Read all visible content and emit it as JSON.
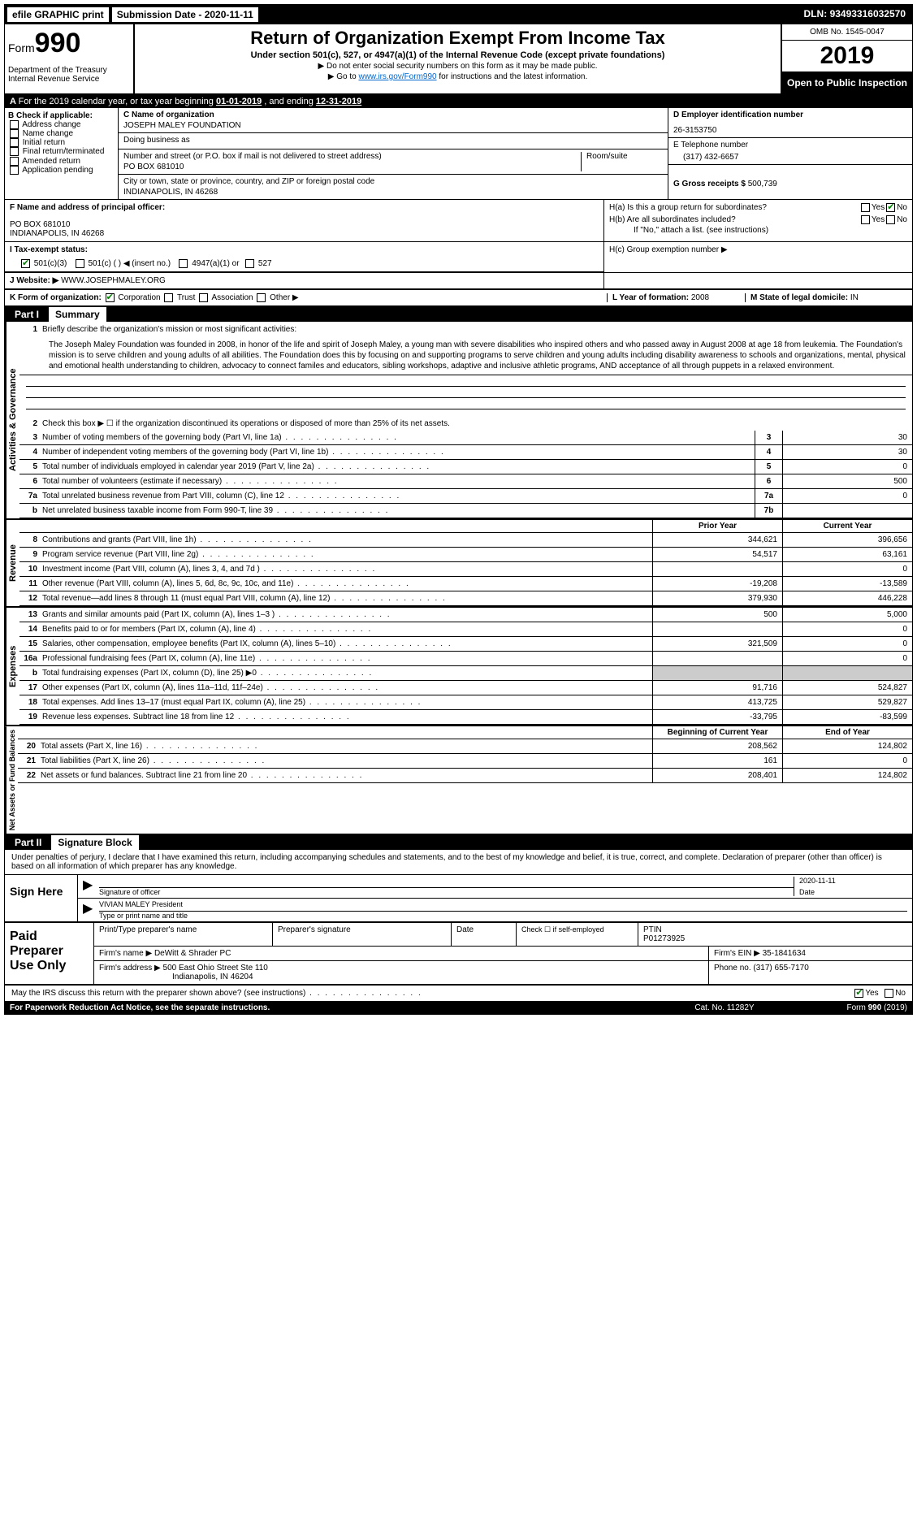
{
  "topbar": {
    "efile": "efile GRAPHIC print",
    "submission": "Submission Date - 2020-11-11",
    "dln_label": "DLN:",
    "dln": "93493316032570"
  },
  "header": {
    "form_word": "Form",
    "form_num": "990",
    "dept": "Department of the Treasury\nInternal Revenue Service",
    "title": "Return of Organization Exempt From Income Tax",
    "subtitle": "Under section 501(c), 527, or 4947(a)(1) of the Internal Revenue Code (except private foundations)",
    "note1": "▶ Do not enter social security numbers on this form as it may be made public.",
    "note2_pre": "▶ Go to ",
    "note2_link": "www.irs.gov/Form990",
    "note2_post": " for instructions and the latest information.",
    "omb": "OMB No. 1545-0047",
    "year": "2019",
    "open": "Open to Public Inspection"
  },
  "section_a": {
    "pre": "For the 2019 calendar year, or tax year beginning ",
    "begin": "01-01-2019",
    "mid": " , and ending ",
    "end": "12-31-2019"
  },
  "box_b": {
    "label": "B Check if applicable:",
    "opts": [
      "Address change",
      "Name change",
      "Initial return",
      "Final return/terminated",
      "Amended return",
      "Application pending"
    ]
  },
  "box_c": {
    "name_label": "C Name of organization",
    "name": "JOSEPH MALEY FOUNDATION",
    "dba_label": "Doing business as",
    "dba": "",
    "street_label": "Number and street (or P.O. box if mail is not delivered to street address)",
    "street": "PO BOX 681010",
    "room_label": "Room/suite",
    "room": "",
    "city_label": "City or town, state or province, country, and ZIP or foreign postal code",
    "city": "INDIANAPOLIS, IN  46268"
  },
  "box_d": {
    "label": "D Employer identification number",
    "val": "26-3153750"
  },
  "box_e": {
    "label": "E Telephone number",
    "val": "(317) 432-6657"
  },
  "box_g": {
    "label": "G Gross receipts $",
    "val": "500,739"
  },
  "box_f": {
    "label": "F Name and address of principal officer:",
    "line1": "PO BOX 681010",
    "line2": "INDIANAPOLIS, IN  46268"
  },
  "box_h": {
    "ha": "H(a)  Is this a group return for subordinates?",
    "ha_no_checked": true,
    "hb": "H(b)  Are all subordinates included?",
    "hb_note": "If \"No,\" attach a list. (see instructions)",
    "hc": "H(c)  Group exemption number ▶"
  },
  "box_i": {
    "label": "I  Tax-exempt status:",
    "opt1": "501(c)(3)",
    "opt2": "501(c) (  ) ◀ (insert no.)",
    "opt3": "4947(a)(1) or",
    "opt4": "527"
  },
  "box_j": {
    "label": "J  Website: ▶",
    "val": "WWW.JOSEPHMALEY.ORG"
  },
  "box_k": {
    "label": "K Form of organization:",
    "opts": [
      "Corporation",
      "Trust",
      "Association",
      "Other ▶"
    ]
  },
  "box_l": {
    "label": "L Year of formation:",
    "val": "2008"
  },
  "box_m": {
    "label": "M State of legal domicile:",
    "val": "IN"
  },
  "part1": {
    "num": "Part I",
    "title": "Summary"
  },
  "labels": {
    "activities": "Activities & Governance",
    "revenue": "Revenue",
    "expenses": "Expenses",
    "netassets": "Net Assets or Fund Balances"
  },
  "line1": {
    "label": "Briefly describe the organization's mission or most significant activities:",
    "mission": "The Joseph Maley Foundation was founded in 2008, in honor of the life and spirit of Joseph Maley, a young man with severe disabilities who inspired others and who passed away in August 2008 at age 18 from leukemia. The Foundation's mission is to serve children and young adults of all abilities. The Foundation does this by focusing on and supporting programs to serve children and young adults including disability awareness to schools and organizations, mental, physical and emotional health understanding to children, advocacy to connect familes and educators, sibling workshops, adaptive and inclusive athletic programs, AND acceptance of all through puppets in a relaxed environment."
  },
  "line2": "Check this box ▶ ☐ if the organization discontinued its operations or disposed of more than 25% of its net assets.",
  "lines_agov": [
    {
      "n": "3",
      "t": "Number of voting members of the governing body (Part VI, line 1a)",
      "bn": "3",
      "v": "30"
    },
    {
      "n": "4",
      "t": "Number of independent voting members of the governing body (Part VI, line 1b)",
      "bn": "4",
      "v": "30"
    },
    {
      "n": "5",
      "t": "Total number of individuals employed in calendar year 2019 (Part V, line 2a)",
      "bn": "5",
      "v": "0"
    },
    {
      "n": "6",
      "t": "Total number of volunteers (estimate if necessary)",
      "bn": "6",
      "v": "500"
    },
    {
      "n": "7a",
      "t": "Total unrelated business revenue from Part VIII, column (C), line 12",
      "bn": "7a",
      "v": "0"
    },
    {
      "n": "b",
      "t": "Net unrelated business taxable income from Form 990-T, line 39",
      "bn": "7b",
      "v": ""
    }
  ],
  "col_headers": {
    "prior": "Prior Year",
    "current": "Current Year",
    "begin": "Beginning of Current Year",
    "end": "End of Year"
  },
  "lines_rev": [
    {
      "n": "8",
      "t": "Contributions and grants (Part VIII, line 1h)",
      "p": "344,621",
      "c": "396,656"
    },
    {
      "n": "9",
      "t": "Program service revenue (Part VIII, line 2g)",
      "p": "54,517",
      "c": "63,161"
    },
    {
      "n": "10",
      "t": "Investment income (Part VIII, column (A), lines 3, 4, and 7d )",
      "p": "",
      "c": "0"
    },
    {
      "n": "11",
      "t": "Other revenue (Part VIII, column (A), lines 5, 6d, 8c, 9c, 10c, and 11e)",
      "p": "-19,208",
      "c": "-13,589"
    },
    {
      "n": "12",
      "t": "Total revenue—add lines 8 through 11 (must equal Part VIII, column (A), line 12)",
      "p": "379,930",
      "c": "446,228"
    }
  ],
  "lines_exp": [
    {
      "n": "13",
      "t": "Grants and similar amounts paid (Part IX, column (A), lines 1–3 )",
      "p": "500",
      "c": "5,000"
    },
    {
      "n": "14",
      "t": "Benefits paid to or for members (Part IX, column (A), line 4)",
      "p": "",
      "c": "0"
    },
    {
      "n": "15",
      "t": "Salaries, other compensation, employee benefits (Part IX, column (A), lines 5–10)",
      "p": "321,509",
      "c": "0"
    },
    {
      "n": "16a",
      "t": "Professional fundraising fees (Part IX, column (A), line 11e)",
      "p": "",
      "c": "0"
    },
    {
      "n": "b",
      "t": "Total fundraising expenses (Part IX, column (D), line 25) ▶0",
      "p": "gray",
      "c": "gray"
    },
    {
      "n": "17",
      "t": "Other expenses (Part IX, column (A), lines 11a–11d, 11f–24e)",
      "p": "91,716",
      "c": "524,827"
    },
    {
      "n": "18",
      "t": "Total expenses. Add lines 13–17 (must equal Part IX, column (A), line 25)",
      "p": "413,725",
      "c": "529,827"
    },
    {
      "n": "19",
      "t": "Revenue less expenses. Subtract line 18 from line 12",
      "p": "-33,795",
      "c": "-83,599"
    }
  ],
  "lines_net": [
    {
      "n": "20",
      "t": "Total assets (Part X, line 16)",
      "p": "208,562",
      "c": "124,802"
    },
    {
      "n": "21",
      "t": "Total liabilities (Part X, line 26)",
      "p": "161",
      "c": "0"
    },
    {
      "n": "22",
      "t": "Net assets or fund balances. Subtract line 21 from line 20",
      "p": "208,401",
      "c": "124,802"
    }
  ],
  "part2": {
    "num": "Part II",
    "title": "Signature Block"
  },
  "sig": {
    "penalty": "Under penalties of perjury, I declare that I have examined this return, including accompanying schedules and statements, and to the best of my knowledge and belief, it is true, correct, and complete. Declaration of preparer (other than officer) is based on all information of which preparer has any knowledge.",
    "sign_here": "Sign Here",
    "sig_officer": "Signature of officer",
    "date_label": "Date",
    "date_val": "2020-11-11",
    "name_title": "VIVIAN MALEY President",
    "type_label": "Type or print name and title"
  },
  "prep": {
    "label": "Paid Preparer Use Only",
    "h1": "Print/Type preparer's name",
    "h2": "Preparer's signature",
    "h3": "Date",
    "h4_pre": "Check ☐ if self-employed",
    "h5": "PTIN",
    "ptin": "P01273925",
    "firm_name_label": "Firm's name    ▶",
    "firm_name": "DeWitt & Shrader PC",
    "firm_ein_label": "Firm's EIN ▶",
    "firm_ein": "35-1841634",
    "firm_addr_label": "Firm's address ▶",
    "firm_addr1": "500 East Ohio Street Ste 110",
    "firm_addr2": "Indianapolis, IN  46204",
    "phone_label": "Phone no.",
    "phone": "(317) 655-7170"
  },
  "discuss": {
    "text": "May the IRS discuss this return with the preparer shown above? (see instructions)",
    "yes": "Yes",
    "no": "No"
  },
  "footer": {
    "left": "For Paperwork Reduction Act Notice, see the separate instructions.",
    "mid": "Cat. No. 11282Y",
    "right_pre": "Form ",
    "right_form": "990",
    "right_post": " (2019)"
  }
}
